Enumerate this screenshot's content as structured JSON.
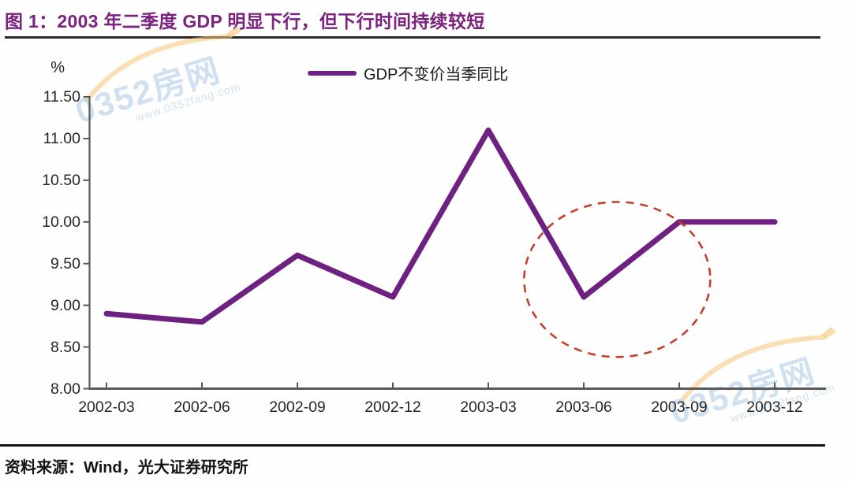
{
  "title": "图 1：2003 年二季度 GDP 明显下行，但下行时间持续较短",
  "source": "资料来源：Wind，光大证券研究所",
  "watermark": {
    "brand": "0352房网",
    "url": "www.0352fang.com"
  },
  "colors": {
    "title": "#7b217e",
    "line": "#6e2180",
    "annotation": "#c1402e",
    "axis": "#595959",
    "text": "#262626"
  },
  "chart_data": {
    "type": "line",
    "unit_label": "%",
    "legend": [
      {
        "name": "GDP不变价当季同比",
        "color": "#6e2180"
      }
    ],
    "categories": [
      "2002-03",
      "2002-06",
      "2002-09",
      "2002-12",
      "2003-03",
      "2003-06",
      "2003-09",
      "2003-12"
    ],
    "series": [
      {
        "name": "GDP不变价当季同比",
        "values": [
          8.9,
          8.8,
          9.6,
          9.1,
          11.1,
          9.1,
          10.0,
          10.0
        ]
      }
    ],
    "ylim": [
      8.0,
      11.5
    ],
    "ytick_step": 0.5,
    "ytick_labels": [
      "11.50",
      "11.00",
      "10.50",
      "10.00",
      "9.50",
      "9.00",
      "8.50",
      "8.00"
    ],
    "grid": false,
    "legend_position": "top-center",
    "annotation": {
      "type": "dashed-ellipse",
      "note": "highlights 2003-06 dip",
      "cx_index": 5.35,
      "cy_value": 9.31,
      "rx_index": 0.975,
      "ry_value": 0.93
    }
  }
}
